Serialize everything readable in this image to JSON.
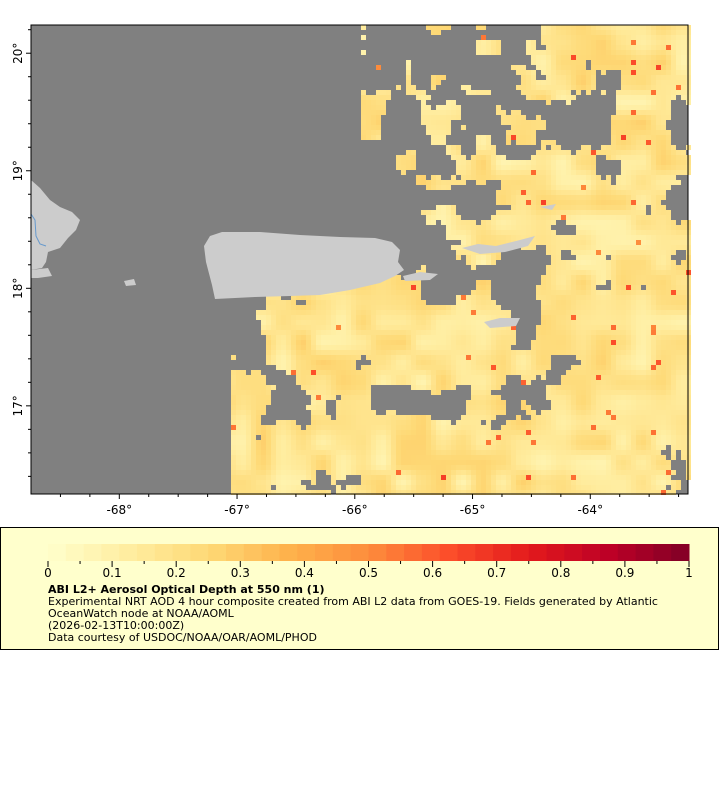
{
  "map": {
    "lon_range": [
      -68.75,
      -63.17
    ],
    "lat_range": [
      16.25,
      20.24
    ],
    "lon_ticks": [
      {
        "v": -68,
        "label": "-68°"
      },
      {
        "v": -67,
        "label": "-67°"
      },
      {
        "v": -66,
        "label": "-66°"
      },
      {
        "v": -65,
        "label": "-65°"
      },
      {
        "v": -64,
        "label": "-64°"
      }
    ],
    "lat_ticks": [
      {
        "v": 20,
        "label": "20°"
      },
      {
        "v": 19,
        "label": "19°"
      },
      {
        "v": 18,
        "label": "18°"
      },
      {
        "v": 17,
        "label": "17°"
      }
    ],
    "colors": {
      "nodata": "#808080",
      "land": "#cccccc",
      "river": "#6699cc",
      "legend_bg": "#ffffcc"
    }
  },
  "colorbar": {
    "range": [
      0,
      1
    ],
    "tick_labels": [
      "0",
      "0.1",
      "0.2",
      "0.3",
      "0.4",
      "0.5",
      "0.6",
      "0.7",
      "0.8",
      "0.9",
      "1"
    ],
    "colors": [
      "#ffffcc",
      "#ffeda0",
      "#fed976",
      "#feb24c",
      "#fd8d3c",
      "#fc4e2a",
      "#e31a1c",
      "#bd0026",
      "#800026"
    ]
  },
  "legend": {
    "title": "ABI L2+ Aerosol Optical Depth at 550 nm (1)",
    "line1": "Experimental NRT AOD 4 hour composite created from ABI L2 data from GOES-19. Fields generated by Atlantic",
    "line2": "OceanWatch node at NOAA/AOML",
    "line3": "(2026-02-13T10:00:00Z)",
    "line4": "Data courtesy of USDOC/NOAA/OAR/AOML/PHOD"
  }
}
